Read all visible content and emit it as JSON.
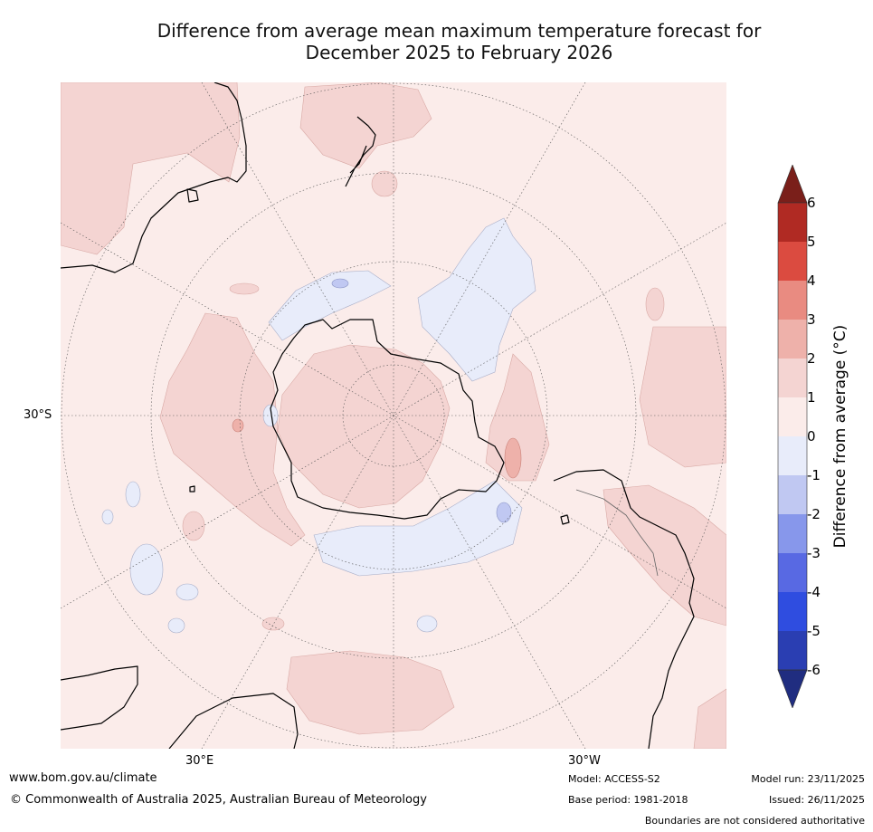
{
  "title_line1": "Difference from average mean maximum temperature forecast for",
  "title_line2": "December 2025 to February 2026",
  "map": {
    "lat_label": "30°S",
    "lon_label_east": "30°E",
    "lon_label_west": "30°W",
    "colors": {
      "background": "#fbecea",
      "warm_1_2": "#f4d4d2",
      "warm_2_3": "#eeb1aa",
      "cool_0_m1": "#e8ecfa",
      "cool_m1_m2": "#c0c8f2",
      "land": "#000000",
      "graticule": "#555555"
    }
  },
  "colorbar": {
    "title": "Difference from average (°C)",
    "ticks": [
      "6",
      "5",
      "4",
      "3",
      "2",
      "1",
      "0",
      "-1",
      "-2",
      "-3",
      "-4",
      "-5",
      "-6"
    ],
    "colors": [
      "#7a1f1a",
      "#b02a23",
      "#db4b40",
      "#e98b81",
      "#eeb1aa",
      "#f4d4d2",
      "#fbecea",
      "#e8ecfa",
      "#c0c8f2",
      "#8797eb",
      "#5869e3",
      "#2f4de0",
      "#2a3eb2",
      "#202d80"
    ]
  },
  "footer": {
    "url": "www.bom.gov.au/climate",
    "copyright": "© Commonwealth of Australia 2025, Australian Bureau of Meteorology",
    "model": "Model: ACCESS-S2",
    "base_period": "Base period: 1981-2018",
    "model_run": "Model run: 23/11/2025",
    "issued": "Issued: 26/11/2025",
    "disclaimer": "Boundaries are not considered authoritative"
  }
}
